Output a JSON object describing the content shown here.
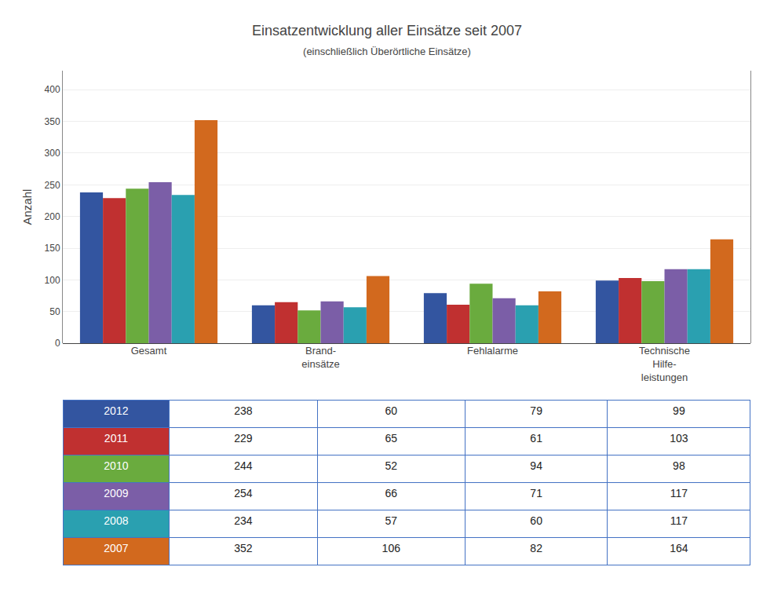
{
  "chart_data": {
    "type": "bar",
    "title": "Einsatzentwicklung aller Einsätze seit 2007",
    "subtitle": "(einschließlich Überörtliche Einsätze)",
    "ylabel": "Anzahl",
    "categories": [
      "Gesamt",
      "Brand-\neinsätze",
      "Fehlalarme",
      "Technische\nHilfe-\nleistungen"
    ],
    "series": [
      {
        "name": "2012",
        "color": "#3355a0",
        "values": [
          238,
          60,
          79,
          99
        ]
      },
      {
        "name": "2011",
        "color": "#c03030",
        "values": [
          229,
          65,
          61,
          103
        ]
      },
      {
        "name": "2010",
        "color": "#6aab3e",
        "values": [
          244,
          52,
          94,
          98
        ]
      },
      {
        "name": "2009",
        "color": "#7b5ea7",
        "values": [
          254,
          66,
          71,
          117
        ]
      },
      {
        "name": "2008",
        "color": "#2aa0b0",
        "values": [
          234,
          57,
          60,
          117
        ]
      },
      {
        "name": "2007",
        "color": "#d2691e",
        "values": [
          352,
          106,
          82,
          164
        ]
      }
    ],
    "ylim": [
      0,
      430
    ],
    "yticks": [
      0,
      50,
      100,
      150,
      200,
      250,
      300,
      350,
      400
    ],
    "grid": true
  }
}
